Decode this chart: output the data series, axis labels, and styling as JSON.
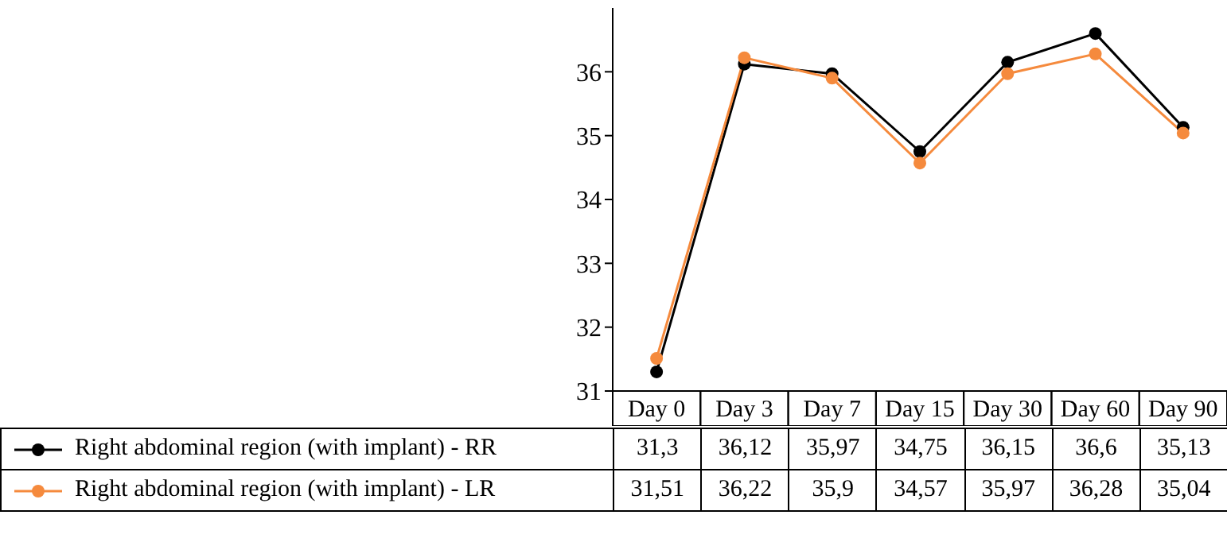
{
  "chart_data": {
    "type": "line",
    "categories": [
      "Day 0",
      "Day 3",
      "Day 7",
      "Day 15",
      "Day 30",
      "Day 60",
      "Day 90"
    ],
    "series": [
      {
        "name": "Right abdominal region (with implant) - RR",
        "color": "#000000",
        "values": [
          31.3,
          36.12,
          35.97,
          34.75,
          36.15,
          36.6,
          35.13
        ],
        "value_labels": [
          "31,3",
          "36,12",
          "35,97",
          "34,75",
          "36,15",
          "36,6",
          "35,13"
        ]
      },
      {
        "name": "Right abdominal region (with implant) - LR",
        "color": "#f58a3d",
        "values": [
          31.51,
          36.22,
          35.9,
          34.57,
          35.97,
          36.28,
          35.04
        ],
        "value_labels": [
          "31,51",
          "36,22",
          "35,9",
          "34,57",
          "35,97",
          "36,28",
          "35,04"
        ]
      }
    ],
    "ylim": [
      31,
      37
    ],
    "yticks": [
      31,
      32,
      33,
      34,
      35,
      36
    ],
    "grid": false,
    "legend": "bottom left",
    "marker": "circle",
    "line_style": "solid"
  }
}
